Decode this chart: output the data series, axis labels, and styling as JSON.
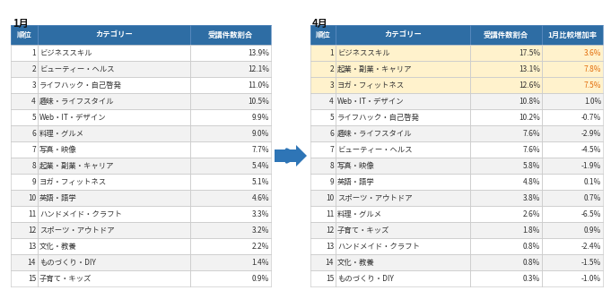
{
  "title_jan": "1月",
  "title_apr": "4月",
  "header_bg": "#2e6da4",
  "header_fg": "#ffffff",
  "row_bg_white": "#ffffff",
  "row_bg_light": "#f2f2f2",
  "highlight_bg": "#fff2cc",
  "highlight_fg_increase": "#e36c09",
  "normal_fg": "#333333",
  "arrow_color": "#2e75b6",
  "jan_data": [
    {
      "rank": "1",
      "cat": "ビジネススキル",
      "pct": "13.9%"
    },
    {
      "rank": "2",
      "cat": "ビューティー・ヘルス",
      "pct": "12.1%"
    },
    {
      "rank": "3",
      "cat": "ライフハック・自己啓発",
      "pct": "11.0%"
    },
    {
      "rank": "4",
      "cat": "趣味・ライフスタイル",
      "pct": "10.5%"
    },
    {
      "rank": "5",
      "cat": "Web・IT・デザイン",
      "pct": "9.9%"
    },
    {
      "rank": "6",
      "cat": "料理・グルメ",
      "pct": "9.0%"
    },
    {
      "rank": "7",
      "cat": "写真・映像",
      "pct": "7.7%"
    },
    {
      "rank": "8",
      "cat": "起業・副業・キャリア",
      "pct": "5.4%"
    },
    {
      "rank": "9",
      "cat": "ヨガ・フィットネス",
      "pct": "5.1%"
    },
    {
      "rank": "10",
      "cat": "英語・語学",
      "pct": "4.6%"
    },
    {
      "rank": "11",
      "cat": "ハンドメイド・クラフト",
      "pct": "3.3%"
    },
    {
      "rank": "12",
      "cat": "スポーツ・アウトドア",
      "pct": "3.2%"
    },
    {
      "rank": "13",
      "cat": "文化・教養",
      "pct": "2.2%"
    },
    {
      "rank": "14",
      "cat": "ものづくり・DIY",
      "pct": "1.4%"
    },
    {
      "rank": "15",
      "cat": "子育て・キッズ",
      "pct": "0.9%"
    }
  ],
  "apr_data": [
    {
      "rank": "1",
      "cat": "ビジネススキル",
      "pct": "17.5%",
      "chg": "3.6%",
      "highlight": true,
      "chg_positive": true
    },
    {
      "rank": "2",
      "cat": "起業・副業・キャリア",
      "pct": "13.1%",
      "chg": "7.8%",
      "highlight": true,
      "chg_positive": true
    },
    {
      "rank": "3",
      "cat": "ヨガ・フィットネス",
      "pct": "12.6%",
      "chg": "7.5%",
      "highlight": true,
      "chg_positive": true
    },
    {
      "rank": "4",
      "cat": "Web・IT・デザイン",
      "pct": "10.8%",
      "chg": "1.0%",
      "highlight": false,
      "chg_positive": true
    },
    {
      "rank": "5",
      "cat": "ライフハック・自己啓発",
      "pct": "10.2%",
      "chg": "-0.7%",
      "highlight": false,
      "chg_positive": false
    },
    {
      "rank": "6",
      "cat": "趣味・ライフスタイル",
      "pct": "7.6%",
      "chg": "-2.9%",
      "highlight": false,
      "chg_positive": false
    },
    {
      "rank": "7",
      "cat": "ビューティー・ヘルス",
      "pct": "7.6%",
      "chg": "-4.5%",
      "highlight": false,
      "chg_positive": false
    },
    {
      "rank": "8",
      "cat": "写真・映像",
      "pct": "5.8%",
      "chg": "-1.9%",
      "highlight": false,
      "chg_positive": false
    },
    {
      "rank": "9",
      "cat": "英語・語学",
      "pct": "4.8%",
      "chg": "0.1%",
      "highlight": false,
      "chg_positive": true
    },
    {
      "rank": "10",
      "cat": "スポーツ・アウトドア",
      "pct": "3.8%",
      "chg": "0.7%",
      "highlight": false,
      "chg_positive": true
    },
    {
      "rank": "11",
      "cat": "料理・グルメ",
      "pct": "2.6%",
      "chg": "-6.5%",
      "highlight": false,
      "chg_positive": false
    },
    {
      "rank": "12",
      "cat": "子育て・キッズ",
      "pct": "1.8%",
      "chg": "0.9%",
      "highlight": false,
      "chg_positive": true
    },
    {
      "rank": "13",
      "cat": "ハンドメイド・クラフト",
      "pct": "0.8%",
      "chg": "-2.4%",
      "highlight": false,
      "chg_positive": false
    },
    {
      "rank": "14",
      "cat": "文化・教養",
      "pct": "0.8%",
      "chg": "-1.5%",
      "highlight": false,
      "chg_positive": false
    },
    {
      "rank": "15",
      "cat": "ものづくり・DIY",
      "pct": "0.3%",
      "chg": "-1.0%",
      "highlight": false,
      "chg_positive": false
    }
  ]
}
